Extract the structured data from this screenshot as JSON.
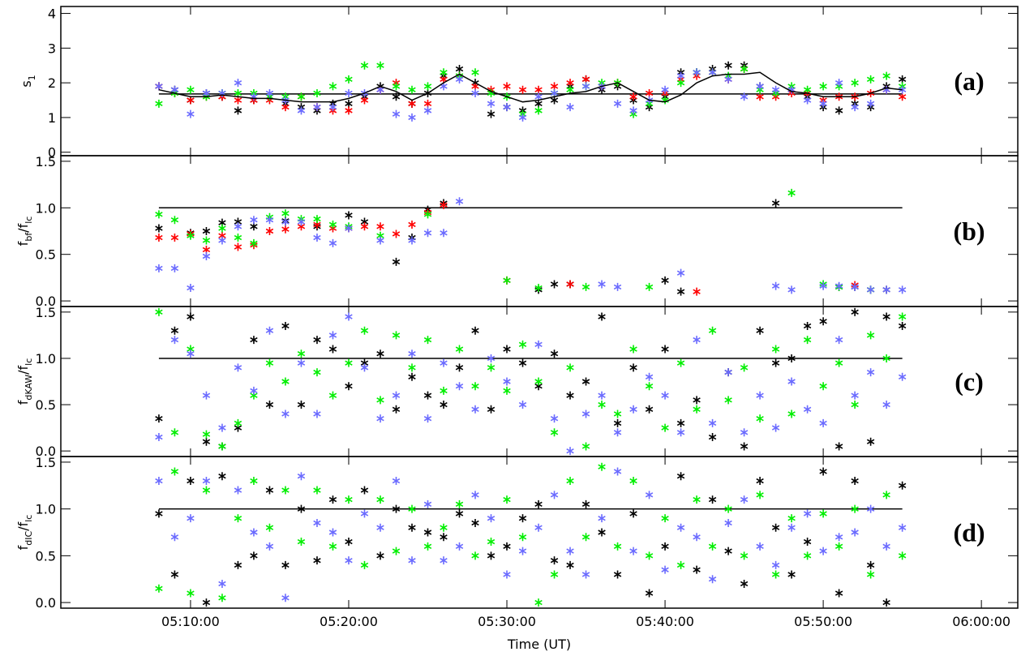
{
  "chart_data": [
    {
      "type": "scatter",
      "label": "(a)",
      "ylabel": [
        {
          "text": "s"
        },
        {
          "text": "1",
          "sub": true
        }
      ],
      "xlim": [
        1.8,
        62.3
      ],
      "xticks": [
        10,
        20,
        30,
        40,
        50,
        60
      ],
      "ylim": [
        -0.1,
        4.2
      ],
      "yticks": [
        0,
        1,
        2,
        3,
        4
      ],
      "x": [
        8,
        9,
        10,
        11,
        12,
        13,
        14,
        15,
        16,
        17,
        18,
        19,
        20,
        21,
        22,
        23,
        24,
        25,
        26,
        27,
        28,
        29,
        30,
        31,
        32,
        33,
        34,
        35,
        36,
        37,
        38,
        39,
        40,
        41,
        42,
        43,
        44,
        45,
        46,
        47,
        48,
        49,
        50,
        51,
        52,
        53,
        54,
        55
      ],
      "hline": {
        "y": 1.68,
        "x": [
          8,
          55
        ]
      },
      "fit": {
        "color": "#000000",
        "values": [
          1.8,
          1.7,
          1.6,
          1.6,
          1.65,
          1.6,
          1.55,
          1.55,
          1.5,
          1.45,
          1.45,
          1.45,
          1.55,
          1.7,
          1.9,
          1.75,
          1.5,
          1.7,
          2.0,
          2.25,
          2.0,
          1.75,
          1.6,
          1.45,
          1.5,
          1.6,
          1.7,
          1.75,
          1.9,
          2.0,
          1.75,
          1.5,
          1.45,
          1.65,
          2.0,
          2.2,
          2.25,
          2.25,
          2.3,
          2.0,
          1.75,
          1.7,
          1.6,
          1.6,
          1.6,
          1.7,
          1.85,
          1.8
        ]
      },
      "series": [
        {
          "color": "#000000",
          "values": [
            1.9,
            1.8,
            1.5,
            1.7,
            1.6,
            1.2,
            1.5,
            1.6,
            1.4,
            1.3,
            1.2,
            1.4,
            1.4,
            1.6,
            1.9,
            1.6,
            1.4,
            1.7,
            2.2,
            2.4,
            2.0,
            1.1,
            1.3,
            1.2,
            1.4,
            1.5,
            1.9,
            2.1,
            1.8,
            1.9,
            1.5,
            1.3,
            1.6,
            2.3,
            2.3,
            2.4,
            2.5,
            2.5,
            1.9,
            1.7,
            1.8,
            1.6,
            1.3,
            1.2,
            1.4,
            1.3,
            1.9,
            2.1
          ]
        },
        {
          "color": "#ff0000",
          "values": [
            1.9,
            1.7,
            1.5,
            1.6,
            1.6,
            1.5,
            1.5,
            1.5,
            1.3,
            1.6,
            1.3,
            1.2,
            1.2,
            1.5,
            1.8,
            2.0,
            1.4,
            1.4,
            2.1,
            2.2,
            1.9,
            1.8,
            1.9,
            1.8,
            1.8,
            1.9,
            2.0,
            2.1,
            1.9,
            2.0,
            1.6,
            1.7,
            1.7,
            2.1,
            2.2,
            2.3,
            2.1,
            2.4,
            1.6,
            1.6,
            1.7,
            1.7,
            1.5,
            1.6,
            1.6,
            1.7,
            1.8,
            1.6
          ]
        },
        {
          "color": "#00ee00",
          "values": [
            1.4,
            1.7,
            1.8,
            1.6,
            1.7,
            1.7,
            1.7,
            1.6,
            1.6,
            1.6,
            1.7,
            1.9,
            2.1,
            2.5,
            2.5,
            1.9,
            1.8,
            1.9,
            2.3,
            2.2,
            2.3,
            1.7,
            1.6,
            1.1,
            1.2,
            1.7,
            1.8,
            1.9,
            2.0,
            2.0,
            1.1,
            1.4,
            1.5,
            2.0,
            2.3,
            2.3,
            2.2,
            2.4,
            1.8,
            1.7,
            1.9,
            1.8,
            1.9,
            1.9,
            2.0,
            2.1,
            2.2,
            1.9
          ]
        },
        {
          "color": "#6b6bff",
          "values": [
            1.9,
            1.8,
            1.1,
            1.7,
            1.7,
            2.0,
            1.6,
            1.7,
            1.5,
            1.2,
            1.3,
            1.3,
            1.7,
            1.7,
            1.8,
            1.1,
            1.0,
            1.2,
            1.9,
            2.1,
            1.7,
            1.4,
            1.3,
            1.0,
            1.6,
            1.7,
            1.3,
            1.9,
            1.9,
            1.4,
            1.2,
            1.5,
            1.8,
            2.2,
            2.3,
            2.3,
            2.1,
            1.6,
            1.9,
            1.8,
            1.8,
            1.5,
            1.4,
            2.0,
            1.3,
            1.4,
            1.8,
            1.8
          ]
        }
      ]
    },
    {
      "type": "scatter",
      "label": "(b)",
      "ylabel": [
        {
          "text": "f"
        },
        {
          "text": "bf",
          "sub": true
        },
        {
          "text": "/f"
        },
        {
          "text": "lc",
          "sub": true
        }
      ],
      "xlim": [
        1.8,
        62.3
      ],
      "xticks": [
        10,
        20,
        30,
        40,
        50,
        60
      ],
      "ylim": [
        -0.06,
        1.56
      ],
      "yticks": [
        {
          "value": 0,
          "label": "0.0"
        },
        {
          "value": 0.5,
          "label": "0.5"
        },
        {
          "value": 1,
          "label": "1.0"
        },
        {
          "value": 1.5,
          "label": "1.5"
        }
      ],
      "hline": {
        "y": 1.0,
        "x": [
          8,
          55
        ]
      },
      "series": [
        {
          "color": "#000000",
          "x": [
            8,
            10,
            11,
            12,
            13,
            14,
            16,
            18,
            20,
            21,
            23,
            24,
            25,
            26,
            32,
            33,
            34,
            40,
            41,
            47,
            51,
            52,
            53,
            54
          ],
          "values": [
            0.78,
            0.73,
            0.75,
            0.84,
            0.85,
            0.8,
            0.86,
            0.8,
            0.92,
            0.85,
            0.42,
            0.68,
            0.98,
            1.05,
            0.12,
            0.18,
            0.18,
            0.22,
            0.1,
            1.05,
            0.15,
            0.15,
            0.12,
            0.12
          ]
        },
        {
          "color": "#ff0000",
          "x": [
            8,
            9,
            10,
            11,
            12,
            13,
            14,
            15,
            16,
            17,
            18,
            19,
            20,
            21,
            22,
            23,
            24,
            25,
            26,
            30,
            34,
            42,
            52
          ],
          "values": [
            0.68,
            0.68,
            0.72,
            0.55,
            0.7,
            0.58,
            0.6,
            0.75,
            0.77,
            0.8,
            0.82,
            0.78,
            0.78,
            0.8,
            0.8,
            0.72,
            0.82,
            0.95,
            1.03,
            0.22,
            0.18,
            0.1,
            0.17
          ]
        },
        {
          "color": "#00ee00",
          "x": [
            8,
            9,
            10,
            11,
            12,
            13,
            14,
            15,
            16,
            17,
            18,
            19,
            20,
            22,
            25,
            30,
            32,
            35,
            39,
            48,
            50,
            51,
            53
          ],
          "values": [
            0.93,
            0.87,
            0.7,
            0.65,
            0.78,
            0.68,
            0.62,
            0.9,
            0.94,
            0.88,
            0.88,
            0.82,
            0.8,
            0.7,
            0.93,
            0.22,
            0.14,
            0.15,
            0.15,
            1.16,
            0.18,
            0.15,
            0.12
          ]
        },
        {
          "color": "#6b6bff",
          "x": [
            8,
            9,
            10,
            11,
            12,
            13,
            14,
            15,
            16,
            17,
            18,
            19,
            20,
            22,
            24,
            25,
            26,
            27,
            36,
            37,
            41,
            47,
            48,
            50,
            51,
            52,
            53,
            54,
            55
          ],
          "values": [
            0.35,
            0.35,
            0.14,
            0.48,
            0.65,
            0.8,
            0.87,
            0.87,
            0.85,
            0.85,
            0.68,
            0.62,
            0.78,
            0.65,
            0.65,
            0.73,
            0.73,
            1.07,
            0.18,
            0.15,
            0.3,
            0.16,
            0.12,
            0.16,
            0.16,
            0.15,
            0.12,
            0.12,
            0.12
          ]
        }
      ]
    },
    {
      "type": "scatter",
      "label": "(c)",
      "ylabel": [
        {
          "text": "f"
        },
        {
          "text": "dKAW",
          "sub": true
        },
        {
          "text": "/f"
        },
        {
          "text": "lc",
          "sub": true
        }
      ],
      "xlim": [
        1.8,
        62.3
      ],
      "xticks": [
        10,
        20,
        30,
        40,
        50,
        60
      ],
      "ylim": [
        -0.06,
        1.56
      ],
      "yticks": [
        {
          "value": 0,
          "label": "0.0"
        },
        {
          "value": 0.5,
          "label": "0.5"
        },
        {
          "value": 1,
          "label": "1.0"
        },
        {
          "value": 1.5,
          "label": "1.5"
        }
      ],
      "x": [
        8,
        9,
        10,
        11,
        12,
        13,
        14,
        15,
        16,
        17,
        18,
        19,
        20,
        21,
        22,
        23,
        24,
        25,
        26,
        27,
        28,
        29,
        30,
        31,
        32,
        33,
        34,
        35,
        36,
        37,
        38,
        39,
        40,
        41,
        42,
        43,
        44,
        45,
        46,
        47,
        48,
        49,
        50,
        51,
        52,
        53,
        54,
        55
      ],
      "hline": {
        "y": 1.0,
        "x": [
          8,
          55
        ]
      },
      "series": [
        {
          "color": "#000000",
          "values": [
            0.35,
            1.3,
            1.45,
            0.1,
            0.05,
            0.25,
            1.2,
            0.5,
            1.35,
            0.5,
            1.2,
            1.1,
            0.7,
            0.95,
            1.05,
            0.45,
            0.8,
            0.6,
            0.5,
            0.9,
            1.3,
            0.45,
            1.1,
            0.95,
            0.7,
            1.05,
            0.6,
            0.75,
            1.45,
            0.3,
            0.9,
            0.45,
            1.1,
            0.3,
            0.55,
            0.15,
            0.85,
            0.05,
            1.3,
            0.95,
            1.0,
            1.35,
            1.4,
            0.05,
            1.5,
            0.1,
            1.45,
            1.35
          ]
        },
        {
          "color": "#00ee00",
          "values": [
            1.5,
            0.2,
            1.1,
            0.18,
            0.05,
            0.3,
            0.6,
            0.95,
            0.75,
            1.05,
            0.85,
            0.6,
            0.95,
            1.3,
            0.55,
            1.25,
            0.9,
            1.2,
            0.65,
            1.1,
            0.7,
            0.9,
            0.65,
            1.15,
            0.75,
            0.2,
            0.9,
            0.05,
            0.5,
            0.4,
            1.1,
            0.7,
            0.25,
            0.95,
            0.45,
            1.3,
            0.55,
            0.9,
            0.35,
            1.1,
            0.4,
            1.2,
            0.7,
            0.95,
            0.5,
            1.25,
            1.0,
            1.45
          ]
        },
        {
          "color": "#6b6bff",
          "values": [
            0.15,
            1.2,
            1.05,
            0.6,
            0.25,
            0.9,
            0.65,
            1.3,
            0.4,
            0.95,
            0.4,
            1.25,
            1.45,
            0.9,
            0.35,
            0.6,
            1.05,
            0.35,
            0.95,
            0.7,
            0.45,
            1.0,
            0.75,
            0.5,
            1.15,
            0.35,
            0.0,
            0.4,
            0.6,
            0.2,
            0.45,
            0.8,
            0.6,
            0.2,
            1.2,
            0.3,
            0.85,
            0.2,
            0.6,
            0.25,
            0.75,
            0.45,
            0.3,
            1.2,
            0.6,
            0.85,
            0.5,
            0.8
          ]
        }
      ]
    },
    {
      "type": "scatter",
      "label": "(d)",
      "ylabel": [
        {
          "text": "f"
        },
        {
          "text": "dIC",
          "sub": true
        },
        {
          "text": "/f"
        },
        {
          "text": "lc",
          "sub": true
        }
      ],
      "xlabel": "Time (UT)",
      "xlim": [
        1.8,
        62.3
      ],
      "xticks": [
        {
          "value": 10,
          "label": "05:10:00"
        },
        {
          "value": 20,
          "label": "05:20:00"
        },
        {
          "value": 30,
          "label": "05:30:00"
        },
        {
          "value": 40,
          "label": "05:40:00"
        },
        {
          "value": 50,
          "label": "05:50:00"
        },
        {
          "value": 60,
          "label": "06:00:00"
        }
      ],
      "ylim": [
        -0.06,
        1.56
      ],
      "yticks": [
        {
          "value": 0,
          "label": "0.0"
        },
        {
          "value": 0.5,
          "label": "0.5"
        },
        {
          "value": 1,
          "label": "1.0"
        },
        {
          "value": 1.5,
          "label": "1.5"
        }
      ],
      "x": [
        8,
        9,
        10,
        11,
        12,
        13,
        14,
        15,
        16,
        17,
        18,
        19,
        20,
        21,
        22,
        23,
        24,
        25,
        26,
        27,
        28,
        29,
        30,
        31,
        32,
        33,
        34,
        35,
        36,
        37,
        38,
        39,
        40,
        41,
        42,
        43,
        44,
        45,
        46,
        47,
        48,
        49,
        50,
        51,
        52,
        53,
        54,
        55
      ],
      "hline": {
        "y": 1.0,
        "x": [
          8,
          55
        ]
      },
      "series": [
        {
          "color": "#000000",
          "values": [
            0.95,
            0.3,
            1.3,
            0.0,
            1.35,
            0.4,
            0.5,
            1.2,
            0.4,
            1.0,
            0.45,
            1.1,
            0.65,
            1.2,
            0.5,
            1.0,
            0.8,
            0.75,
            0.7,
            0.95,
            0.85,
            0.5,
            0.6,
            0.9,
            1.05,
            0.45,
            0.4,
            1.05,
            0.75,
            0.3,
            0.95,
            0.1,
            0.6,
            1.35,
            0.35,
            1.1,
            0.55,
            0.2,
            1.3,
            0.8,
            0.3,
            0.65,
            1.4,
            0.1,
            1.3,
            0.4,
            0.0,
            1.25
          ]
        },
        {
          "color": "#00ee00",
          "values": [
            0.15,
            1.4,
            0.1,
            1.2,
            0.05,
            0.9,
            1.3,
            0.8,
            1.2,
            0.65,
            1.2,
            0.6,
            1.1,
            0.4,
            1.1,
            0.55,
            1.0,
            0.6,
            0.8,
            1.05,
            0.5,
            0.65,
            1.1,
            0.7,
            0.0,
            0.3,
            1.3,
            0.7,
            1.45,
            0.6,
            1.3,
            0.5,
            0.9,
            0.4,
            1.1,
            0.6,
            1.0,
            0.5,
            1.15,
            0.3,
            0.9,
            0.5,
            0.95,
            0.6,
            1.0,
            0.3,
            1.15,
            0.5
          ]
        },
        {
          "color": "#6b6bff",
          "values": [
            1.3,
            0.7,
            0.9,
            1.3,
            0.2,
            1.2,
            0.75,
            0.6,
            0.05,
            1.35,
            0.85,
            0.75,
            0.45,
            0.95,
            0.8,
            1.3,
            0.45,
            1.05,
            0.45,
            0.6,
            1.15,
            0.9,
            0.3,
            0.55,
            0.8,
            1.15,
            0.55,
            0.3,
            0.9,
            1.4,
            0.55,
            1.15,
            0.35,
            0.8,
            0.7,
            0.25,
            0.85,
            1.1,
            0.6,
            0.4,
            0.8,
            0.95,
            0.55,
            0.7,
            0.75,
            1.0,
            0.6,
            0.8
          ]
        }
      ]
    }
  ]
}
